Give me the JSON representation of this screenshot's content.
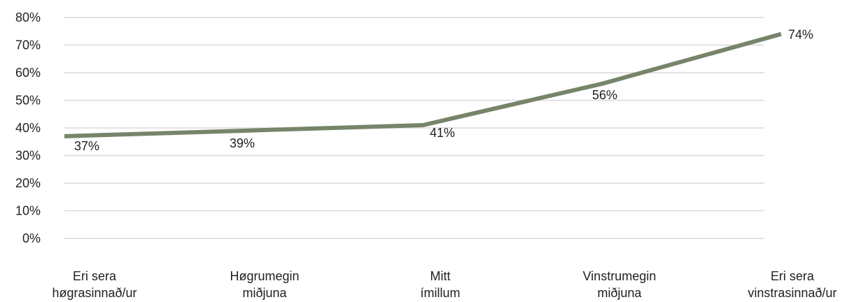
{
  "chart_data": {
    "type": "line",
    "categories": [
      [
        "Eri sera",
        "høgrasinnað/ur"
      ],
      [
        "Høgrumegin",
        "miðjuna"
      ],
      [
        "Mitt",
        "ímillum"
      ],
      [
        "Vinstrumegin",
        "miðjuna"
      ],
      [
        "Eri sera",
        "vinstrasinnað/ur"
      ]
    ],
    "series": [
      {
        "values": [
          37,
          39,
          41,
          56,
          74
        ],
        "data_labels": [
          "37%",
          "39%",
          "41%",
          "56%",
          "74%"
        ],
        "color": "#76856a"
      }
    ],
    "ylim": [
      0,
      80
    ],
    "yticks": [
      0,
      10,
      20,
      30,
      40,
      50,
      60,
      70,
      80
    ],
    "ytick_labels": [
      "0%",
      "10%",
      "20%",
      "30%",
      "40%",
      "50%",
      "60%",
      "70%",
      "80%"
    ],
    "grid": true,
    "legend": "none"
  }
}
